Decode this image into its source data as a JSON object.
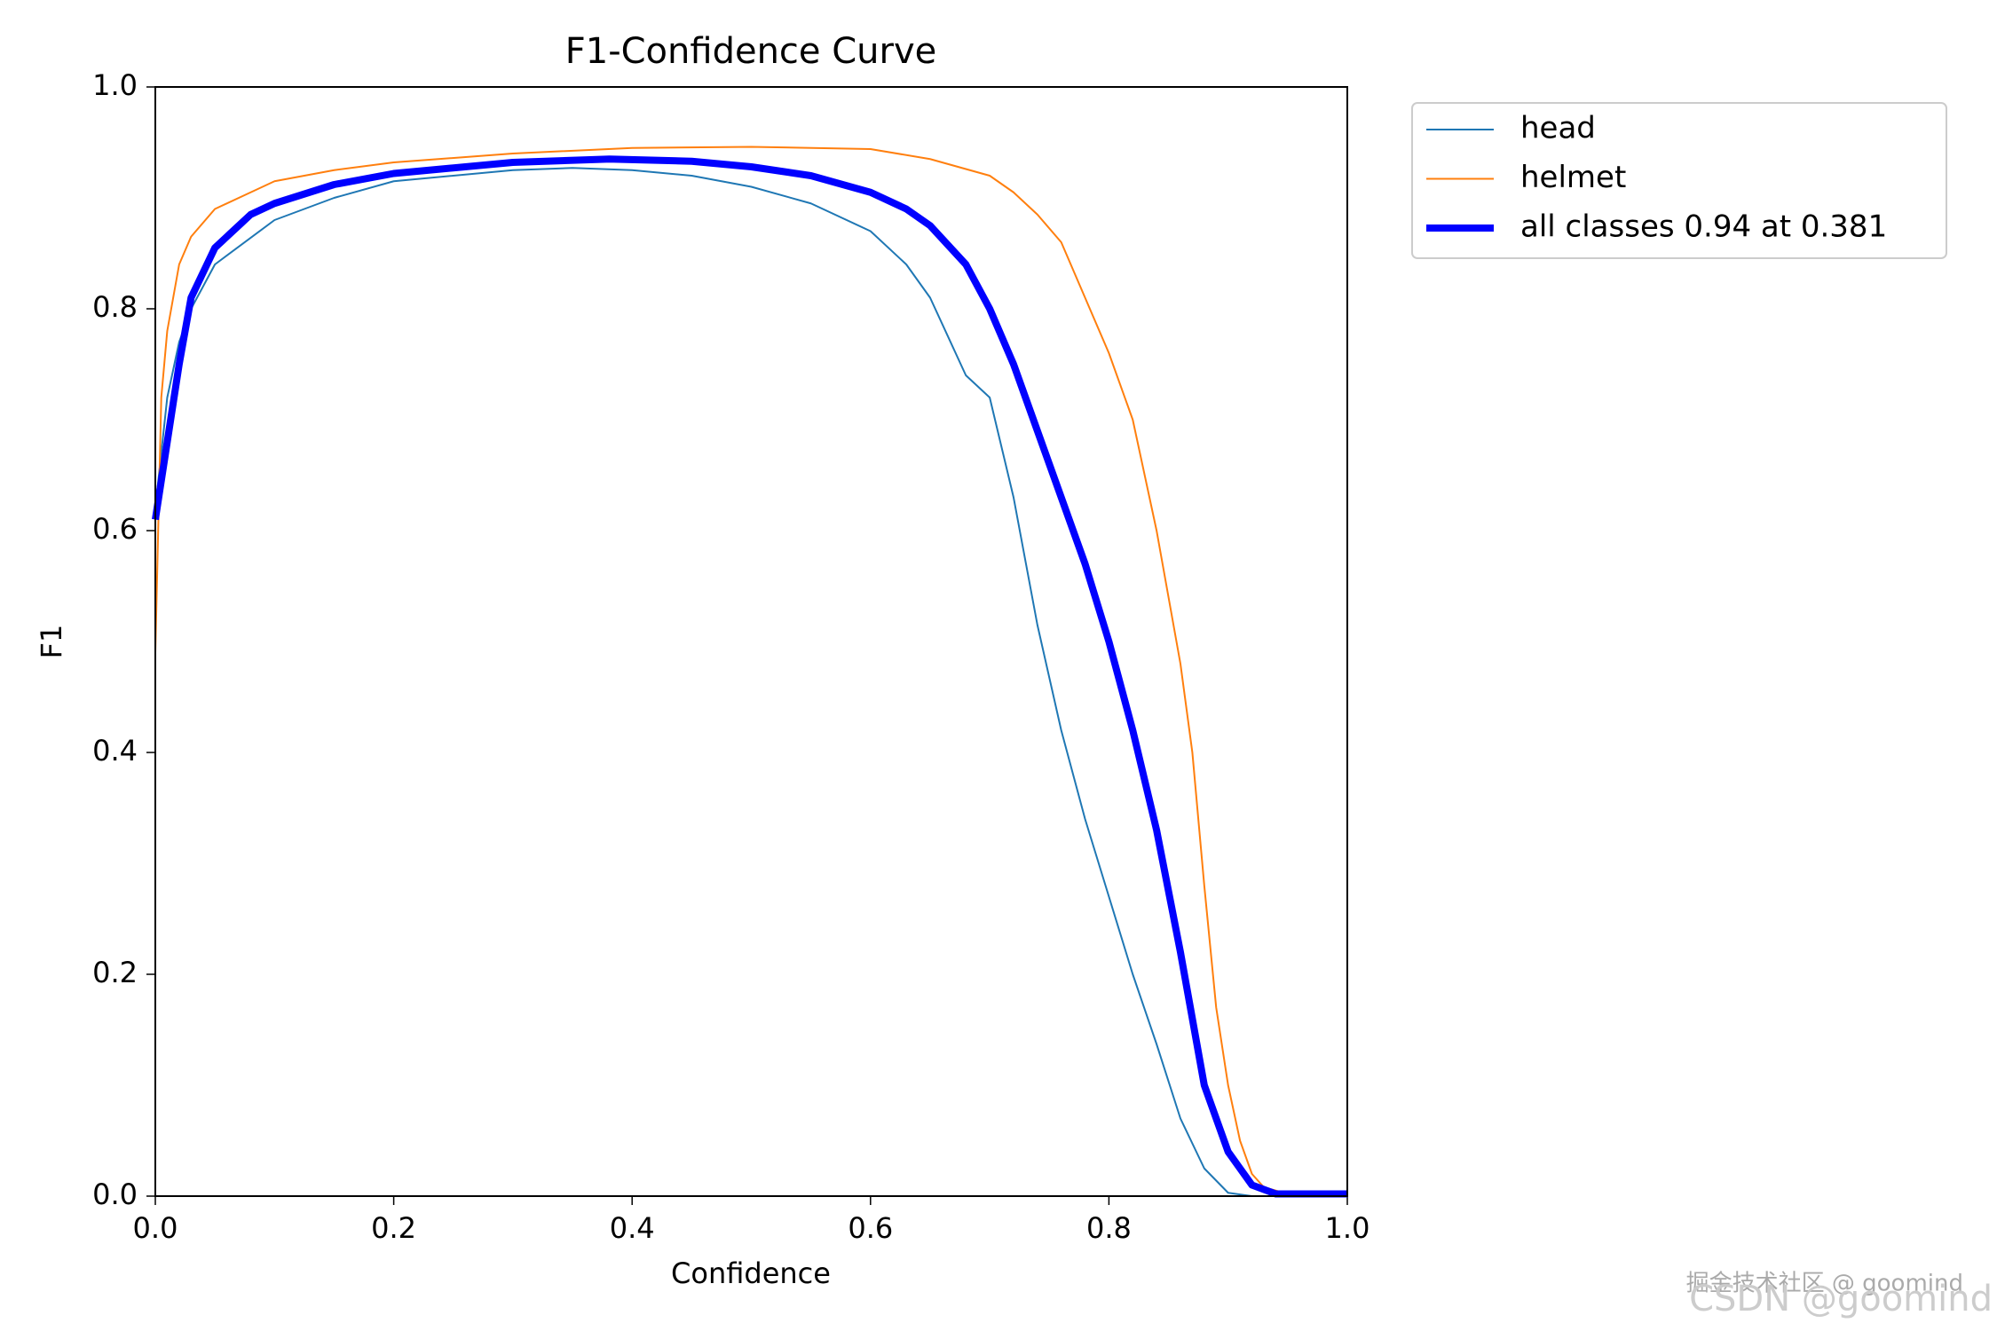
{
  "chart_data": {
    "type": "line",
    "title": "F1-Confidence Curve",
    "x_label": "Confidence",
    "y_label": "F1",
    "xlim": [
      0,
      1
    ],
    "ylim": [
      0,
      1
    ],
    "xticks": [
      {
        "value": 0,
        "label": "0.0"
      },
      0.2,
      0.4,
      0.6,
      0.8,
      {
        "value": 1,
        "label": "1.0"
      }
    ],
    "yticks": [
      {
        "value": 0,
        "label": "0.0"
      },
      0.2,
      0.4,
      0.6,
      0.8,
      {
        "value": 1,
        "label": "1.0"
      }
    ],
    "legend": "outside upper right",
    "series": [
      {
        "name": "head",
        "color": "#1f77b4",
        "width": 2,
        "x": [
          0,
          0.01,
          0.02,
          0.03,
          0.05,
          0.1,
          0.15,
          0.2,
          0.3,
          0.35,
          0.4,
          0.45,
          0.5,
          0.55,
          0.6,
          0.63,
          0.65,
          0.68,
          0.7,
          0.72,
          0.74,
          0.76,
          0.78,
          0.8,
          0.82,
          0.84,
          0.86,
          0.88,
          0.9,
          0.92,
          1
        ],
        "values": [
          0.62,
          0.72,
          0.77,
          0.8,
          0.84,
          0.88,
          0.9,
          0.915,
          0.925,
          0.927,
          0.925,
          0.92,
          0.91,
          0.895,
          0.87,
          0.84,
          0.81,
          0.74,
          0.72,
          0.63,
          0.515,
          0.42,
          0.34,
          0.27,
          0.2,
          0.137,
          0.07,
          0.025,
          0.003,
          0,
          0
        ]
      },
      {
        "name": "helmet",
        "color": "#ff7f0e",
        "width": 2,
        "x": [
          0,
          0.005,
          0.01,
          0.02,
          0.03,
          0.05,
          0.08,
          0.1,
          0.15,
          0.2,
          0.3,
          0.4,
          0.5,
          0.6,
          0.65,
          0.7,
          0.72,
          0.74,
          0.76,
          0.78,
          0.8,
          0.82,
          0.84,
          0.86,
          0.87,
          0.88,
          0.89,
          0.9,
          0.91,
          0.92,
          0.93,
          0.95,
          1
        ],
        "values": [
          0.49,
          0.72,
          0.78,
          0.84,
          0.865,
          0.89,
          0.905,
          0.915,
          0.925,
          0.932,
          0.94,
          0.945,
          0.946,
          0.944,
          0.935,
          0.92,
          0.905,
          0.885,
          0.86,
          0.81,
          0.76,
          0.7,
          0.6,
          0.48,
          0.4,
          0.28,
          0.17,
          0.1,
          0.05,
          0.02,
          0.008,
          0.002,
          0.002
        ]
      },
      {
        "name": "all classes 0.94 at 0.381",
        "color": "#0000ff",
        "width": 8,
        "x": [
          0,
          0.01,
          0.02,
          0.03,
          0.05,
          0.08,
          0.1,
          0.15,
          0.2,
          0.3,
          0.381,
          0.45,
          0.5,
          0.55,
          0.6,
          0.63,
          0.65,
          0.68,
          0.7,
          0.72,
          0.74,
          0.76,
          0.78,
          0.8,
          0.82,
          0.84,
          0.86,
          0.88,
          0.9,
          0.92,
          0.94,
          1
        ],
        "values": [
          0.61,
          0.68,
          0.75,
          0.81,
          0.855,
          0.885,
          0.895,
          0.912,
          0.922,
          0.932,
          0.935,
          0.933,
          0.928,
          0.92,
          0.905,
          0.89,
          0.875,
          0.84,
          0.8,
          0.75,
          0.69,
          0.63,
          0.57,
          0.5,
          0.42,
          0.33,
          0.22,
          0.1,
          0.04,
          0.01,
          0.002,
          0.002
        ]
      }
    ]
  },
  "watermark": [
    "掘金技术社区 @ goomind",
    "CSDN @goomind"
  ]
}
